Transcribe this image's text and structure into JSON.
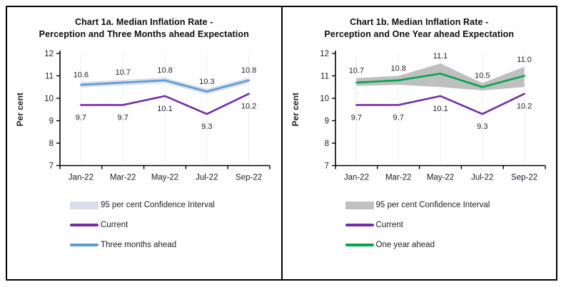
{
  "chart_data": [
    {
      "type": "line",
      "title_lines": [
        "Chart 1a. Median Inflation Rate -",
        "Perception and Three Months ahead Expectation"
      ],
      "ylabel": "Per cent",
      "ylim": [
        7,
        12
      ],
      "yticks": [
        "7",
        "8",
        "9",
        "10",
        "11",
        "12"
      ],
      "categories": [
        "Jan-22",
        "Mar-22",
        "May-22",
        "Jul-22",
        "Sep-22"
      ],
      "grid": "faint-vertical",
      "legend_position": "bottom-left",
      "series": [
        {
          "name": "Three months ahead",
          "color": "#5b9bd5",
          "values": [
            10.6,
            10.7,
            10.8,
            10.3,
            10.8
          ],
          "labels": [
            "10.6",
            "10.7",
            "10.8",
            "10.3",
            "10.8"
          ],
          "label_position": "above"
        },
        {
          "name": "Current",
          "color": "#7030a0",
          "values": [
            9.7,
            9.7,
            10.1,
            9.3,
            10.2
          ],
          "labels": [
            "9.7",
            "9.7",
            "10.1",
            "9.3",
            "10.2"
          ],
          "label_position": "below"
        }
      ],
      "confidence_band": {
        "name": "95 per cent Confidence Interval",
        "color": "#d9dce9",
        "lower": [
          10.48,
          10.58,
          10.68,
          10.18,
          10.68
        ],
        "upper": [
          10.72,
          10.82,
          10.92,
          10.42,
          10.92
        ]
      },
      "legend": [
        {
          "label": "95 per cent Confidence Interval",
          "swatch": "band",
          "color": "#d9dce9"
        },
        {
          "label": "Current",
          "swatch": "line",
          "color": "#7030a0"
        },
        {
          "label": "Three months ahead",
          "swatch": "line",
          "color": "#5b9bd5"
        }
      ]
    },
    {
      "type": "line",
      "title_lines": [
        "Chart 1b. Median Inflation Rate -",
        "Perception and One Year ahead Expectation"
      ],
      "ylabel": "Per cent",
      "ylim": [
        7,
        12
      ],
      "yticks": [
        "7",
        "8",
        "9",
        "10",
        "11",
        "12"
      ],
      "categories": [
        "Jan-22",
        "Mar-22",
        "May-22",
        "Jul-22",
        "Sep-22"
      ],
      "grid": "faint-vertical",
      "legend_position": "bottom-left",
      "series": [
        {
          "name": "One year ahead",
          "color": "#00a550",
          "values": [
            10.7,
            10.8,
            11.1,
            10.5,
            11.0
          ],
          "labels": [
            "10.7",
            "10.8",
            "11.1",
            "10.5",
            "11.0"
          ],
          "label_position": "above"
        },
        {
          "name": "Current",
          "color": "#7030a0",
          "values": [
            9.7,
            9.7,
            10.1,
            9.3,
            10.2
          ],
          "labels": [
            "9.7",
            "9.7",
            "10.1",
            "9.3",
            "10.2"
          ],
          "label_position": "below"
        }
      ],
      "confidence_band": {
        "name": "95 per cent Confidence Interval",
        "color": "#bfbfbf",
        "lower": [
          10.55,
          10.6,
          10.5,
          10.35,
          10.5
        ],
        "upper": [
          10.9,
          11.0,
          11.55,
          10.68,
          11.4
        ]
      },
      "legend": [
        {
          "label": "95 per cent Confidence Interval",
          "swatch": "band",
          "color": "#c0c0c0"
        },
        {
          "label": "Current",
          "swatch": "line",
          "color": "#7030a0"
        },
        {
          "label": "One year ahead",
          "swatch": "line",
          "color": "#00a550"
        }
      ]
    }
  ]
}
